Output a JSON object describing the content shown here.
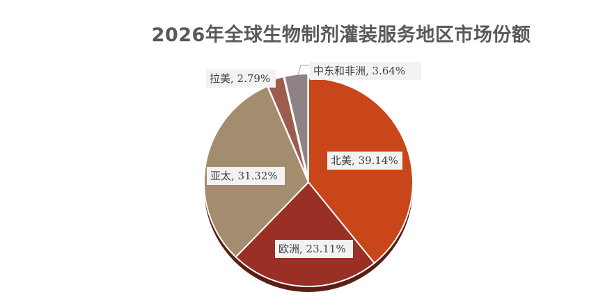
{
  "chart_data": {
    "type": "pie",
    "title": "2026年全球生物制剂灌装服务地区市场份额",
    "slices": [
      {
        "name": "北美",
        "value": 39.14,
        "label": "北美, 39.14%",
        "color": "#C9451A"
      },
      {
        "name": "欧洲",
        "value": 23.11,
        "label": "欧洲, 23.11%",
        "color": "#9A2F25"
      },
      {
        "name": "亚太",
        "value": 31.32,
        "label": "亚太, 31.32%",
        "color": "#A48C6E"
      },
      {
        "name": "拉美",
        "value": 2.79,
        "label": "拉美, 2.79%",
        "color": "#9E5B4E"
      },
      {
        "name": "中东和非洲",
        "value": 3.64,
        "label": "中东和非洲, 3.64%",
        "color": "#8F8285"
      }
    ],
    "legend": "none"
  }
}
